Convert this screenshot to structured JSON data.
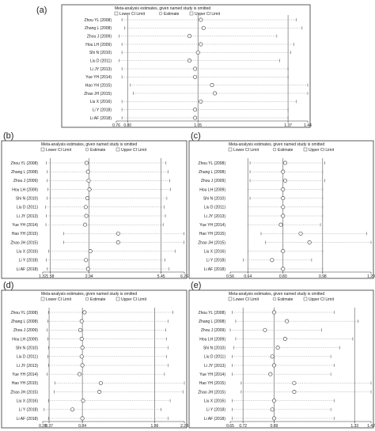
{
  "legend": {
    "title": "Meta-analysis estimates, given named study is omitted",
    "lower": "Lower CI Limit",
    "estimate": "Estimate",
    "upper": "Upper CI Limit"
  },
  "chart_data": [
    {
      "type": "scatter",
      "panel": "(a)",
      "studies": [
        "Zhou YL (2008)",
        "Zhang L (2008)",
        "Zhou J (2009)",
        "Hou LH (2009)",
        "Shi N (2010)",
        "Liu D (2011)",
        "Li JY (2013)",
        "Yue YH (2014)",
        "Hao YH (2015)",
        "Zhao JH (2015)",
        "Liu X (2016)",
        "Li Y (2018)",
        "Li AF (2018)"
      ],
      "estimates": [
        1.06,
        1.07,
        1.02,
        1.06,
        1.05,
        1.02,
        1.04,
        1.04,
        1.1,
        1.11,
        1.06,
        1.04,
        1.04
      ],
      "lower": [
        0.78,
        0.79,
        0.77,
        0.78,
        0.78,
        0.77,
        0.78,
        0.78,
        0.81,
        0.82,
        0.78,
        0.78,
        0.78
      ],
      "upper": [
        1.4,
        1.42,
        1.33,
        1.39,
        1.38,
        1.34,
        1.37,
        1.37,
        1.44,
        1.44,
        1.4,
        1.37,
        1.37
      ],
      "ticks": [
        0.76,
        0.8,
        1.05,
        1.37,
        1.44
      ],
      "tick_labels": [
        "0.76",
        "0.80",
        "1.05",
        "1.37",
        "1.44"
      ],
      "xlim": [
        0.76,
        1.44
      ],
      "ref_lines": [
        0.8,
        1.05,
        1.37
      ]
    },
    {
      "type": "scatter",
      "panel": "(b)",
      "studies": [
        "Zhou YL (2008)",
        "Zhang L (2008)",
        "Zhou J (2009)",
        "Hou LH (2009)",
        "Shi N (2010)",
        "Liu D (2011)",
        "Li JY (2013)",
        "Yue YH (2014)",
        "Hao YH (2015)",
        "Zhao JH (2015)",
        "Liu X (2016)",
        "Li Y (2018)",
        "Li AF (2018)"
      ],
      "estimates": [
        2.85,
        2.9,
        2.92,
        2.95,
        2.88,
        2.82,
        2.84,
        2.8,
        3.95,
        3.95,
        2.98,
        2.83,
        2.9
      ],
      "lower": [
        1.45,
        1.48,
        1.48,
        1.5,
        1.47,
        1.42,
        1.45,
        1.43,
        2.05,
        2.05,
        1.52,
        1.44,
        1.48
      ],
      "upper": [
        5.62,
        5.7,
        5.75,
        5.78,
        5.65,
        5.55,
        5.6,
        5.52,
        6.25,
        6.25,
        5.95,
        5.58,
        5.72
      ],
      "ticks": [
        1.32,
        1.58,
        2.94,
        5.45,
        6.26
      ],
      "tick_labels": [
        "1.32",
        "1.58",
        "2.94",
        "5.45",
        "6.26"
      ],
      "xlim": [
        1.32,
        6.26
      ],
      "ref_lines": [
        1.58,
        2.94,
        5.45
      ]
    },
    {
      "type": "scatter",
      "panel": "(c)",
      "studies": [
        "Zhou YL (2008)",
        "Zhang L (2008)",
        "Zhou J (2009)",
        "Hou LH (2009)",
        "Shi N (2010)",
        "Liu D (2011)",
        "Li JY (2013)",
        "Yue YH (2014)",
        "Hao YH (2015)",
        "Zhao JH (2015)",
        "Liu X (2016)",
        "Li Y (2018)",
        "Li AF (2018)"
      ],
      "estimates": [
        0.81,
        0.8,
        0.81,
        0.8,
        0.8,
        0.8,
        0.8,
        0.79,
        0.88,
        0.92,
        0.8,
        0.75,
        0.8
      ],
      "lower": [
        0.65,
        0.65,
        0.65,
        0.64,
        0.65,
        0.64,
        0.64,
        0.64,
        0.7,
        0.72,
        0.64,
        0.62,
        0.64
      ],
      "upper": [
        0.99,
        0.98,
        0.99,
        0.98,
        0.98,
        0.98,
        0.98,
        0.97,
        1.18,
        1.2,
        0.98,
        0.93,
        0.98
      ],
      "ticks": [
        0.56,
        0.64,
        0.8,
        0.98,
        1.2
      ],
      "tick_labels": [
        "0.56",
        "0.64",
        "0.80",
        "0.98",
        "1.20"
      ],
      "xlim": [
        0.56,
        1.2
      ],
      "ref_lines": [
        0.64,
        0.8,
        0.98
      ]
    },
    {
      "type": "scatter",
      "panel": "(d)",
      "studies": [
        "Zhou YL (2008)",
        "Zhang L (2008)",
        "Zhou J (2009)",
        "Hou LH (2009)",
        "Shi N (2010)",
        "Liu D (2011)",
        "Li JY (2013)",
        "Yue YH (2014)",
        "Hao YH (2015)",
        "Zhao JH (2015)",
        "Liu X (2016)",
        "Li Y (2018)",
        "Li AF (2018)"
      ],
      "estimates": [
        0.87,
        0.83,
        0.81,
        0.83,
        0.84,
        0.83,
        0.84,
        0.8,
        1.1,
        1.08,
        0.85,
        0.7,
        0.84
      ],
      "lower": [
        0.36,
        0.35,
        0.34,
        0.35,
        0.36,
        0.35,
        0.36,
        0.34,
        0.45,
        0.44,
        0.36,
        0.3,
        0.36
      ],
      "upper": [
        2.12,
        2.05,
        2.02,
        2.03,
        2.05,
        2.03,
        2.05,
        2.0,
        2.28,
        2.26,
        2.08,
        1.95,
        2.05
      ],
      "ticks": [
        0.28,
        0.37,
        0.84,
        1.86,
        2.28
      ],
      "tick_labels": [
        "0.28",
        "0.37",
        "0.84",
        "1.86",
        "2.28"
      ],
      "xlim": [
        0.28,
        2.28
      ],
      "ref_lines": [
        0.37,
        0.84,
        1.86
      ]
    },
    {
      "type": "scatter",
      "panel": "(e)",
      "studies": [
        "Zhou YL (2008)",
        "Zhang L (2008)",
        "Zhou J (2009)",
        "Hou LH (2009)",
        "Shi N (2010)",
        "Liu D (2011)",
        "Li JY (2013)",
        "Yue YH (2014)",
        "Hao YH (2015)",
        "Zhao JH (2015)",
        "Liu X (2016)",
        "Li Y (2018)",
        "Li AF (2018)"
      ],
      "estimates": [
        0.89,
        0.96,
        0.84,
        0.95,
        0.91,
        0.88,
        0.89,
        0.87,
        1.0,
        1.0,
        0.89,
        0.88,
        0.89
      ],
      "lower": [
        0.66,
        0.68,
        0.65,
        0.68,
        0.67,
        0.66,
        0.66,
        0.66,
        0.71,
        0.71,
        0.66,
        0.66,
        0.66
      ],
      "upper": [
        1.22,
        1.35,
        1.15,
        1.32,
        1.25,
        1.2,
        1.22,
        1.2,
        1.42,
        1.42,
        1.22,
        1.2,
        1.22
      ],
      "ticks": [
        0.65,
        0.72,
        0.89,
        1.33,
        1.42
      ],
      "tick_labels": [
        "0.65",
        "0.72",
        "0.89",
        "1.33",
        "1.42"
      ],
      "xlim": [
        0.65,
        1.42
      ],
      "ref_lines": [
        0.72,
        0.89,
        1.33
      ]
    }
  ]
}
